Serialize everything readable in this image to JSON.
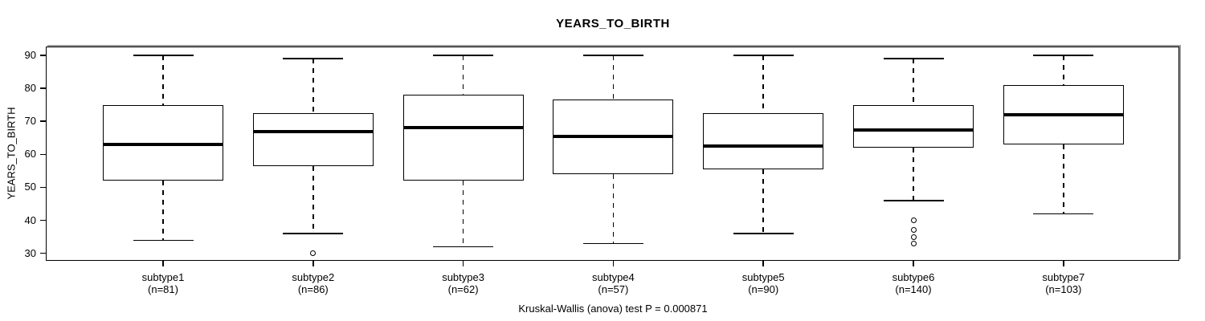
{
  "chart_data": {
    "type": "boxplot",
    "title": "YEARS_TO_BIRTH",
    "ylabel": "YEARS_TO_BIRTH",
    "xlabel": "",
    "ylim": [
      27.74,
      92.67
    ],
    "yticks": [
      30,
      40,
      50,
      60,
      70,
      80,
      90
    ],
    "grid": false,
    "legend": "none",
    "footnote": "Kruskal-Wallis (anova) test P = 0.000871",
    "categories": [
      "subtype1",
      "subtype2",
      "subtype3",
      "subtype4",
      "subtype5",
      "subtype6",
      "subtype7"
    ],
    "series": [
      {
        "label": "subtype1",
        "n_label": "(n=81)",
        "n": 81,
        "whisker_low": 34,
        "q1": 52,
        "median": 63,
        "q3": 75,
        "whisker_high": 90,
        "outliers": []
      },
      {
        "label": "subtype2",
        "n_label": "(n=86)",
        "n": 86,
        "whisker_low": 36,
        "q1": 56.5,
        "median": 67,
        "q3": 72.5,
        "whisker_high": 89,
        "outliers": [
          30
        ]
      },
      {
        "label": "subtype3",
        "n_label": "(n=62)",
        "n": 62,
        "whisker_low": 32,
        "q1": 52,
        "median": 68,
        "q3": 78,
        "whisker_high": 90,
        "outliers": []
      },
      {
        "label": "subtype4",
        "n_label": "(n=57)",
        "n": 57,
        "whisker_low": 33,
        "q1": 54,
        "median": 65.5,
        "q3": 76.5,
        "whisker_high": 90,
        "outliers": []
      },
      {
        "label": "subtype5",
        "n_label": "(n=90)",
        "n": 90,
        "whisker_low": 36,
        "q1": 55.5,
        "median": 62.5,
        "q3": 72.5,
        "whisker_high": 90,
        "outliers": []
      },
      {
        "label": "subtype6",
        "n_label": "(n=140)",
        "n": 140,
        "whisker_low": 46,
        "q1": 62,
        "median": 67.5,
        "q3": 75,
        "whisker_high": 89,
        "outliers": [
          40,
          37,
          35,
          33
        ]
      },
      {
        "label": "subtype7",
        "n_label": "(n=103)",
        "n": 103,
        "whisker_low": 42,
        "q1": 63,
        "median": 72,
        "q3": 81,
        "whisker_high": 90,
        "outliers": []
      }
    ],
    "colors": {
      "line": "#000000",
      "box_fill": "#ffffff",
      "background": "#ffffff",
      "frame_shadow": "#9a9a9a"
    }
  }
}
